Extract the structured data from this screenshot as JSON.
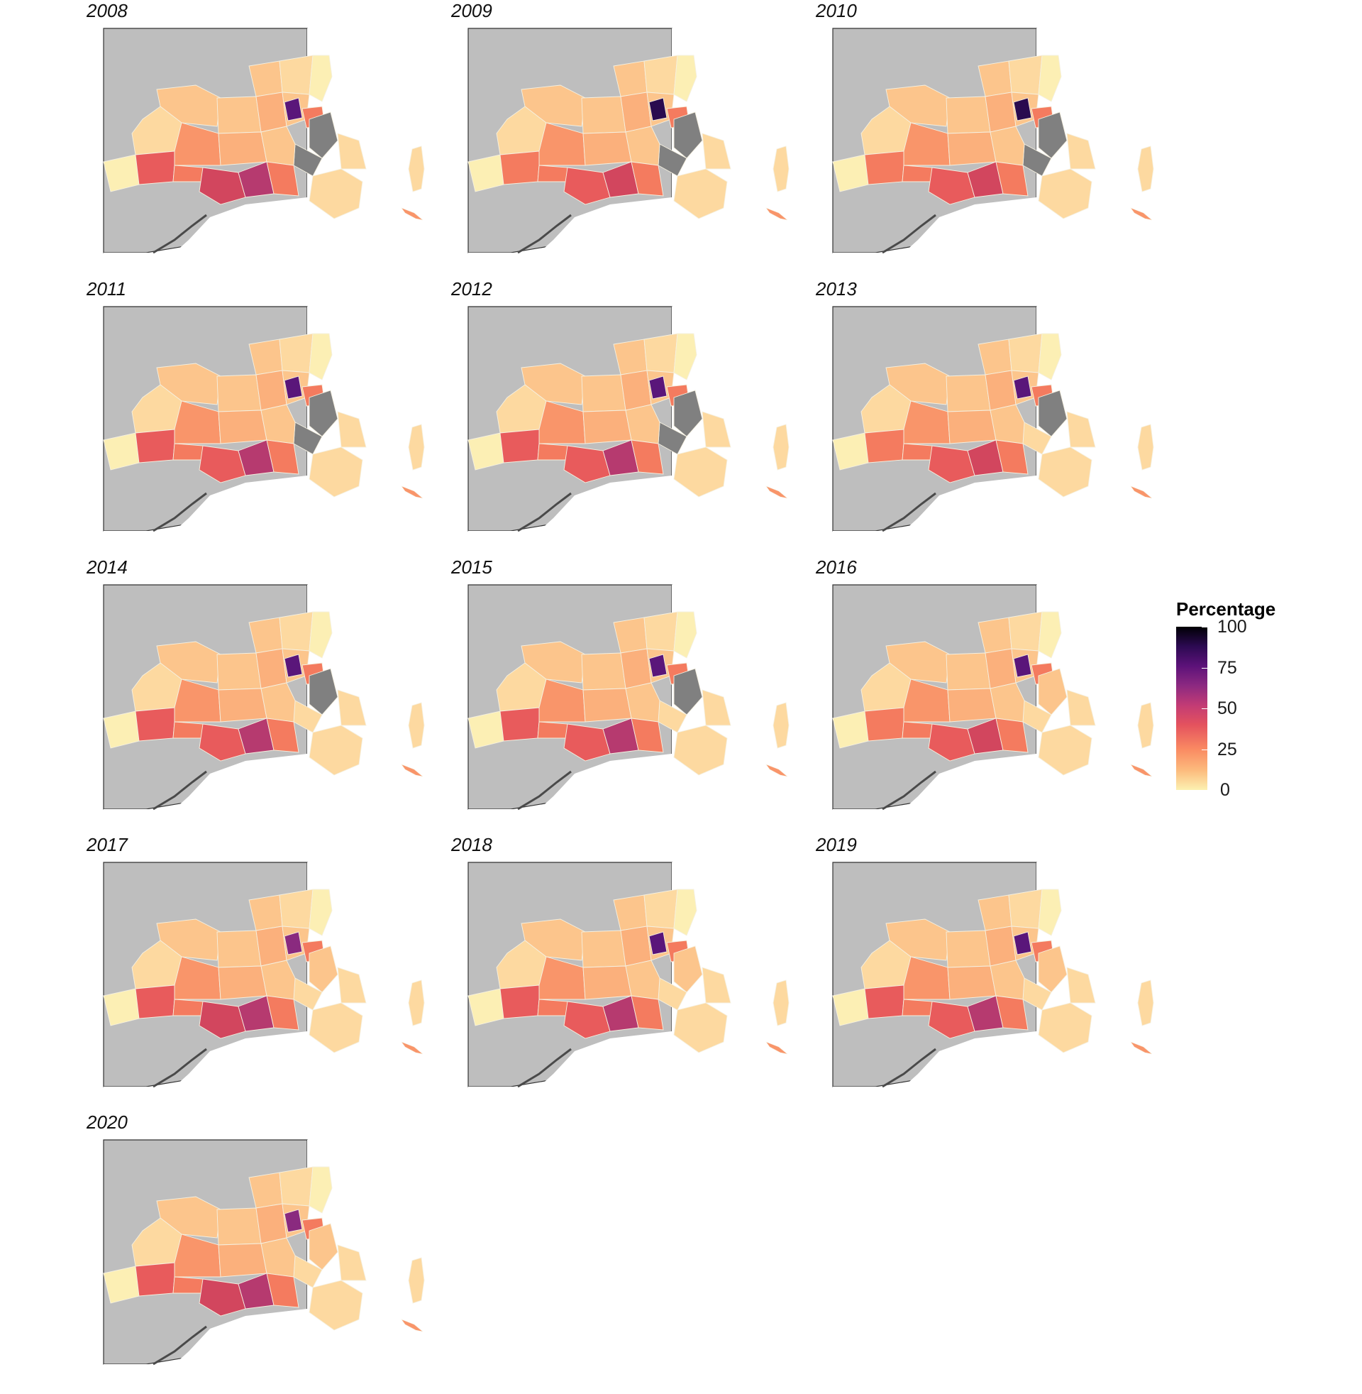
{
  "figure": {
    "panels": [
      {
        "year": "2008"
      },
      {
        "year": "2009"
      },
      {
        "year": "2010"
      },
      {
        "year": "2011"
      },
      {
        "year": "2012"
      },
      {
        "year": "2013"
      },
      {
        "year": "2014"
      },
      {
        "year": "2015"
      },
      {
        "year": "2016"
      },
      {
        "year": "2017"
      },
      {
        "year": "2018"
      },
      {
        "year": "2019"
      },
      {
        "year": "2020"
      }
    ]
  },
  "legend": {
    "title": "Percentage",
    "ticks": [
      "100",
      "75",
      "50",
      "25",
      "0"
    ],
    "range": [
      0,
      100
    ],
    "palette": "magma (reversed)",
    "placement": "right"
  },
  "colors": {
    "background_land": "#bebebe",
    "missing_data": "#808080",
    "low": "#fcf1b1",
    "mid": "#fa8a62",
    "high": "#000004"
  }
}
